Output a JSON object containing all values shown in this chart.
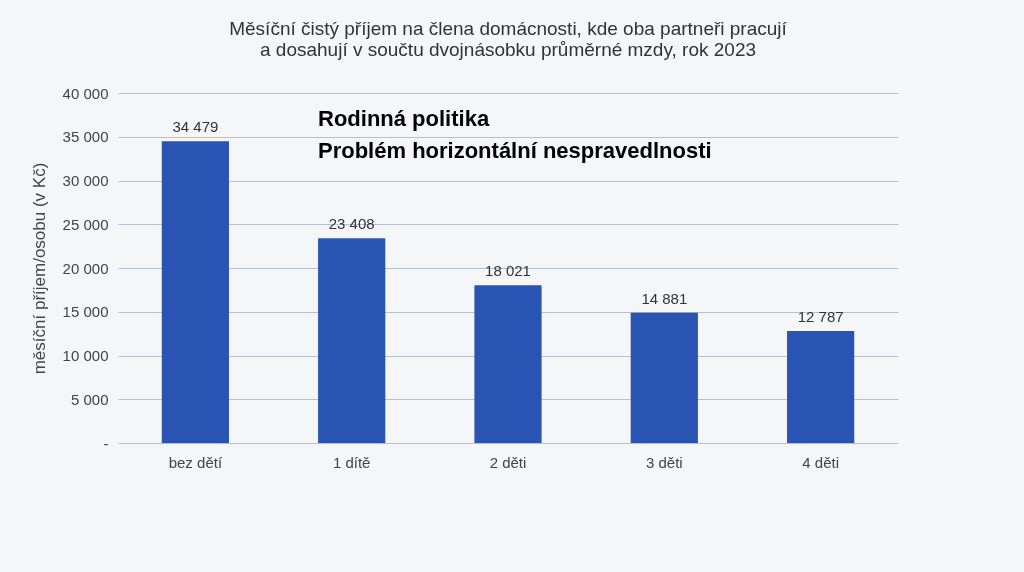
{
  "chart_data": {
    "type": "bar",
    "title": "Měsíční čistý příjem na člena domácnosti, kde oba partneři pracují a dosahují v součtu dvojnásobku průměrné mzdy, rok 2023",
    "ylabel": "měsíční příjem/osobu (v Kč)",
    "annotations": [
      "Rodinná politika",
      "Problém horizontální nespravedlnosti"
    ],
    "categories": [
      "bez dětí",
      "1 dítě",
      "2 děti",
      "3 děti",
      "4 děti"
    ],
    "values": [
      34479,
      23408,
      18021,
      14881,
      12787
    ],
    "value_labels": [
      "34 479",
      "23 408",
      "18 021",
      "14 881",
      "12 787"
    ],
    "color": "#2a54b4",
    "ylim": [
      0,
      40000
    ],
    "yticks": [
      {
        "value": 0,
        "label": "-"
      },
      {
        "value": 5000,
        "label": "5 000"
      },
      {
        "value": 10000,
        "label": "10 000"
      },
      {
        "value": 15000,
        "label": "15 000"
      },
      {
        "value": 20000,
        "label": "20 000"
      },
      {
        "value": 25000,
        "label": "25 000"
      },
      {
        "value": 30000,
        "label": "30 000"
      },
      {
        "value": 35000,
        "label": "35 000"
      },
      {
        "value": 40000,
        "label": "40 000"
      }
    ],
    "grid": "y"
  }
}
